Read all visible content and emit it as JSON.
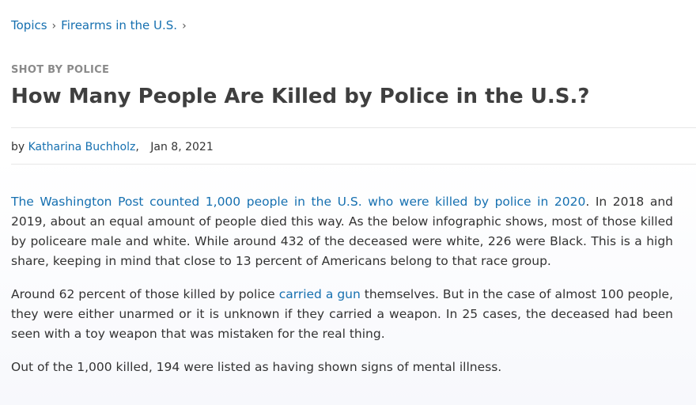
{
  "breadcrumb": {
    "items": [
      {
        "label": "Topics"
      },
      {
        "label": "Firearms in the U.S."
      }
    ],
    "separator": "›"
  },
  "article": {
    "kicker": "SHOT BY POLICE",
    "title": "How Many People Are Killed by Police in the U.S.?",
    "byline": {
      "prefix": "by",
      "author": "Katharina Buchholz",
      "author_suffix": ",",
      "date": "Jan 8, 2021"
    },
    "paragraphs": [
      {
        "link": "The Washington Post counted 1,000 people in the U.S. who were killed by police in 2020",
        "text": ". In 2018 and 2019, about an equal amount of people died this way. As the below infographic shows, most of those killed by policeare male and white. While around 432 of the deceased were white, 226 were Black. This is a high share, keeping in mind that close to 13 percent of Americans belong to that race group."
      },
      {
        "before": "Around 62 percent of those killed by police ",
        "link": "carried a gun",
        "after": " themselves. But in the case of almost 100 people, they were either unarmed or it is unknown if they carried a weapon. In 25 cases, the deceased had been seen with a toy weapon that was mistaken for the real thing."
      },
      {
        "text": "Out of the 1,000 killed, 194 were listed as having shown signs of mental illness."
      }
    ]
  },
  "colors": {
    "link": "#1670b0",
    "title": "#3f3f3f",
    "kicker": "#8a8a8a",
    "text": "#333333"
  }
}
